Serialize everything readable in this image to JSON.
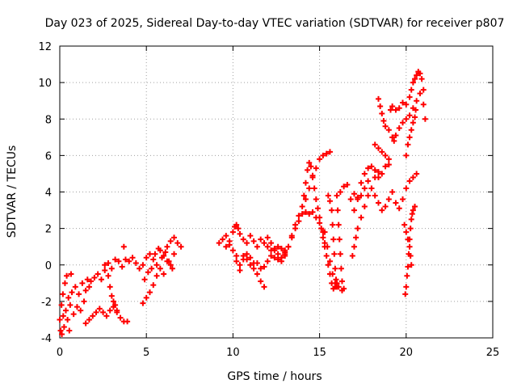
{
  "chart_data": {
    "type": "scatter",
    "title": "Day 023 of 2025, Sidereal Day-to-day VTEC variation (SDTVAR) for receiver p807",
    "xlabel": "GPS time / hours",
    "ylabel": "SDTVAR / TECUs",
    "xlim": [
      0,
      25
    ],
    "ylim": [
      -4,
      12
    ],
    "xticks": [
      "0",
      "5",
      "10",
      "15",
      "20",
      "25"
    ],
    "yticks": [
      "-4",
      "-2",
      "0",
      "2",
      "4",
      "6",
      "8",
      "10",
      "12"
    ],
    "grid": true,
    "marker": "plus",
    "color": "#ff0000",
    "series": [
      {
        "points": [
          [
            0.0,
            -3.0
          ],
          [
            0.05,
            -3.6
          ],
          [
            0.1,
            -2.2
          ],
          [
            0.12,
            -3.8
          ],
          [
            0.18,
            -1.6
          ],
          [
            0.2,
            -2.8
          ],
          [
            0.25,
            -3.4
          ],
          [
            0.3,
            -1.0
          ],
          [
            0.35,
            -2.5
          ],
          [
            0.4,
            -0.6
          ],
          [
            0.45,
            -3.0
          ],
          [
            0.5,
            -1.8
          ],
          [
            0.55,
            -3.6
          ],
          [
            0.6,
            -2.2
          ],
          [
            0.65,
            -0.5
          ],
          [
            0.7,
            -1.5
          ],
          [
            0.8,
            -2.7
          ],
          [
            0.9,
            -1.2
          ],
          [
            1.0,
            -2.3
          ],
          [
            1.1,
            -1.6
          ],
          [
            1.2,
            -2.5
          ],
          [
            1.3,
            -1.0
          ],
          [
            1.4,
            -2.0
          ],
          [
            1.5,
            -1.4
          ],
          [
            1.6,
            -0.8
          ],
          [
            1.7,
            -1.2
          ],
          [
            1.5,
            -3.2
          ],
          [
            1.7,
            -3.0
          ],
          [
            1.9,
            -2.8
          ],
          [
            2.1,
            -2.6
          ],
          [
            2.3,
            -2.4
          ],
          [
            2.5,
            -2.6
          ],
          [
            2.7,
            -2.8
          ],
          [
            2.9,
            -2.5
          ],
          [
            3.1,
            -2.3
          ],
          [
            3.3,
            -2.6
          ],
          [
            3.5,
            -2.9
          ],
          [
            3.7,
            -3.1
          ],
          [
            3.9,
            -3.1
          ],
          [
            1.8,
            -0.9
          ],
          [
            2.0,
            -0.7
          ],
          [
            2.2,
            -0.5
          ],
          [
            2.4,
            -0.8
          ],
          [
            2.6,
            -0.3
          ],
          [
            2.8,
            0.1
          ],
          [
            3.0,
            -0.2
          ],
          [
            3.2,
            0.3
          ],
          [
            3.4,
            0.2
          ],
          [
            3.6,
            -0.1
          ],
          [
            3.8,
            0.3
          ],
          [
            3.7,
            1.0
          ],
          [
            2.6,
            0.0
          ],
          [
            2.8,
            -0.6
          ],
          [
            2.9,
            -1.2
          ],
          [
            3.0,
            -1.7
          ],
          [
            3.1,
            -2.0
          ],
          [
            3.2,
            -2.2
          ],
          [
            3.3,
            -2.5
          ],
          [
            4.0,
            0.2
          ],
          [
            4.2,
            0.4
          ],
          [
            4.4,
            0.1
          ],
          [
            4.6,
            -0.2
          ],
          [
            4.8,
            0.0
          ],
          [
            5.0,
            0.4
          ],
          [
            5.2,
            0.6
          ],
          [
            5.4,
            0.3
          ],
          [
            5.6,
            0.0
          ],
          [
            5.8,
            0.8
          ],
          [
            6.0,
            0.5
          ],
          [
            6.2,
            1.0
          ],
          [
            6.4,
            1.3
          ],
          [
            6.6,
            1.5
          ],
          [
            6.8,
            1.2
          ],
          [
            7.0,
            1.0
          ],
          [
            4.8,
            -2.1
          ],
          [
            5.0,
            -1.8
          ],
          [
            5.2,
            -1.5
          ],
          [
            5.4,
            -1.1
          ],
          [
            5.6,
            -0.6
          ],
          [
            5.8,
            -0.2
          ],
          [
            6.0,
            -0.5
          ],
          [
            6.2,
            0.2
          ],
          [
            6.4,
            0.0
          ],
          [
            6.6,
            0.6
          ],
          [
            4.9,
            -0.8
          ],
          [
            5.1,
            -0.4
          ],
          [
            5.3,
            -0.2
          ],
          [
            5.5,
            0.6
          ],
          [
            5.7,
            0.9
          ],
          [
            5.9,
            0.4
          ],
          [
            6.1,
            0.7
          ],
          [
            6.3,
            0.2
          ],
          [
            6.5,
            -0.2
          ],
          [
            9.2,
            1.2
          ],
          [
            9.4,
            1.4
          ],
          [
            9.6,
            1.0
          ],
          [
            9.8,
            1.3
          ],
          [
            10.0,
            1.8
          ],
          [
            10.1,
            2.1
          ],
          [
            10.2,
            2.2
          ],
          [
            10.3,
            2.0
          ],
          [
            10.4,
            1.7
          ],
          [
            10.6,
            1.4
          ],
          [
            10.8,
            1.2
          ],
          [
            11.0,
            1.6
          ],
          [
            11.2,
            1.3
          ],
          [
            11.4,
            1.0
          ],
          [
            11.6,
            1.4
          ],
          [
            11.8,
            1.2
          ],
          [
            12.0,
            1.0
          ],
          [
            12.2,
            0.8
          ],
          [
            12.4,
            0.9
          ],
          [
            12.6,
            1.0
          ],
          [
            12.8,
            0.9
          ],
          [
            13.0,
            0.8
          ],
          [
            9.6,
            1.6
          ],
          [
            9.8,
            1.1
          ],
          [
            10.0,
            0.8
          ],
          [
            10.2,
            0.5
          ],
          [
            10.4,
            0.0
          ],
          [
            10.6,
            0.3
          ],
          [
            10.8,
            0.6
          ],
          [
            11.0,
            0.4
          ],
          [
            11.2,
            0.1
          ],
          [
            11.4,
            -0.5
          ],
          [
            11.6,
            -0.9
          ],
          [
            11.8,
            -1.2
          ],
          [
            10.2,
            0.2
          ],
          [
            10.4,
            -0.3
          ],
          [
            10.6,
            0.5
          ],
          [
            10.8,
            0.3
          ],
          [
            11.0,
            0.0
          ],
          [
            11.2,
            -0.2
          ],
          [
            11.4,
            0.1
          ],
          [
            11.6,
            -0.2
          ],
          [
            11.8,
            -0.1
          ],
          [
            12.0,
            0.2
          ],
          [
            12.2,
            0.5
          ],
          [
            12.4,
            0.4
          ],
          [
            12.6,
            0.6
          ],
          [
            12.8,
            0.4
          ],
          [
            13.0,
            0.7
          ],
          [
            12.0,
            1.5
          ],
          [
            12.2,
            1.2
          ],
          [
            12.4,
            0.8
          ],
          [
            12.6,
            0.3
          ],
          [
            12.8,
            0.2
          ],
          [
            13.0,
            0.6
          ],
          [
            13.2,
            1.0
          ],
          [
            13.4,
            1.6
          ],
          [
            13.6,
            2.2
          ],
          [
            13.8,
            2.7
          ],
          [
            14.0,
            3.2
          ],
          [
            14.2,
            3.6
          ],
          [
            14.4,
            4.2
          ],
          [
            14.6,
            4.8
          ],
          [
            14.8,
            5.3
          ],
          [
            15.0,
            5.8
          ],
          [
            15.2,
            6.0
          ],
          [
            15.4,
            6.1
          ],
          [
            15.6,
            6.2
          ],
          [
            13.0,
            0.5
          ],
          [
            13.2,
            1.0
          ],
          [
            13.4,
            1.5
          ],
          [
            13.6,
            2.0
          ],
          [
            13.8,
            2.4
          ],
          [
            14.0,
            2.8
          ],
          [
            14.2,
            2.9
          ],
          [
            14.4,
            2.8
          ],
          [
            14.6,
            2.9
          ],
          [
            14.8,
            2.6
          ],
          [
            15.0,
            2.3
          ],
          [
            15.2,
            1.8
          ],
          [
            15.3,
            1.2
          ],
          [
            14.1,
            3.8
          ],
          [
            14.2,
            4.5
          ],
          [
            14.3,
            5.2
          ],
          [
            14.4,
            5.6
          ],
          [
            14.5,
            5.4
          ],
          [
            14.6,
            4.9
          ],
          [
            14.7,
            4.2
          ],
          [
            14.8,
            3.6
          ],
          [
            14.9,
            3.1
          ],
          [
            15.0,
            2.6
          ],
          [
            15.1,
            2.0
          ],
          [
            15.2,
            1.5
          ],
          [
            15.3,
            1.0
          ],
          [
            15.4,
            0.5
          ],
          [
            15.5,
            0.0
          ],
          [
            15.6,
            -0.5
          ],
          [
            15.7,
            -1.0
          ],
          [
            15.8,
            -1.3
          ],
          [
            15.9,
            -1.2
          ],
          [
            16.0,
            -1.0
          ],
          [
            15.5,
            3.8
          ],
          [
            15.6,
            3.5
          ],
          [
            15.7,
            3.0
          ],
          [
            15.75,
            2.2
          ],
          [
            15.8,
            1.4
          ],
          [
            15.85,
            0.6
          ],
          [
            15.9,
            -0.2
          ],
          [
            15.95,
            -0.8
          ],
          [
            16.0,
            -1.2
          ],
          [
            16.0,
            3.8
          ],
          [
            16.05,
            3.0
          ],
          [
            16.1,
            2.2
          ],
          [
            16.15,
            1.4
          ],
          [
            16.2,
            0.6
          ],
          [
            16.25,
            -0.2
          ],
          [
            16.3,
            -0.9
          ],
          [
            16.4,
            -1.3
          ],
          [
            15.3,
            1.8
          ],
          [
            15.45,
            1.0
          ],
          [
            15.6,
            0.2
          ],
          [
            15.75,
            -0.5
          ],
          [
            15.9,
            -1.0
          ],
          [
            16.1,
            -1.2
          ],
          [
            16.3,
            -1.4
          ],
          [
            16.2,
            4.0
          ],
          [
            16.4,
            4.3
          ],
          [
            16.6,
            4.4
          ],
          [
            16.8,
            3.6
          ],
          [
            17.0,
            3.0
          ],
          [
            17.2,
            3.6
          ],
          [
            17.4,
            4.5
          ],
          [
            17.6,
            5.0
          ],
          [
            17.8,
            5.3
          ],
          [
            18.0,
            5.4
          ],
          [
            18.2,
            5.2
          ],
          [
            18.4,
            4.8
          ],
          [
            18.6,
            5.0
          ],
          [
            18.8,
            5.4
          ],
          [
            19.0,
            5.5
          ],
          [
            16.9,
            0.5
          ],
          [
            17.0,
            1.0
          ],
          [
            17.1,
            1.5
          ],
          [
            17.2,
            2.0
          ],
          [
            17.4,
            2.6
          ],
          [
            17.6,
            3.2
          ],
          [
            17.8,
            3.8
          ],
          [
            18.0,
            4.2
          ],
          [
            18.2,
            4.8
          ],
          [
            18.4,
            5.1
          ],
          [
            17.0,
            3.9
          ],
          [
            17.2,
            3.7
          ],
          [
            17.4,
            3.8
          ],
          [
            17.6,
            4.2
          ],
          [
            17.8,
            4.6
          ],
          [
            18.0,
            4.2
          ],
          [
            18.2,
            3.8
          ],
          [
            18.4,
            3.4
          ],
          [
            18.6,
            3.0
          ],
          [
            18.8,
            3.2
          ],
          [
            19.0,
            3.6
          ],
          [
            19.2,
            4.0
          ],
          [
            19.4,
            3.4
          ],
          [
            19.6,
            3.1
          ],
          [
            19.8,
            3.6
          ],
          [
            20.0,
            4.2
          ],
          [
            20.2,
            4.6
          ],
          [
            20.4,
            4.8
          ],
          [
            20.6,
            5.0
          ],
          [
            18.2,
            6.6
          ],
          [
            18.4,
            6.4
          ],
          [
            18.6,
            6.2
          ],
          [
            18.8,
            6.0
          ],
          [
            19.0,
            5.8
          ],
          [
            18.4,
            9.1
          ],
          [
            18.5,
            8.7
          ],
          [
            18.6,
            8.3
          ],
          [
            18.7,
            7.9
          ],
          [
            18.8,
            7.6
          ],
          [
            19.0,
            7.4
          ],
          [
            19.2,
            7.0
          ],
          [
            19.3,
            6.8
          ],
          [
            19.4,
            7.1
          ],
          [
            19.6,
            7.5
          ],
          [
            19.8,
            7.8
          ],
          [
            20.0,
            8.0
          ],
          [
            20.2,
            8.2
          ],
          [
            20.4,
            8.6
          ],
          [
            20.6,
            9.0
          ],
          [
            20.8,
            9.4
          ],
          [
            21.0,
            8.8
          ],
          [
            21.1,
            8.0
          ],
          [
            19.1,
            8.5
          ],
          [
            19.2,
            8.7
          ],
          [
            19.4,
            8.5
          ],
          [
            19.6,
            8.6
          ],
          [
            19.8,
            8.9
          ],
          [
            20.0,
            8.8
          ],
          [
            20.2,
            9.2
          ],
          [
            20.3,
            9.6
          ],
          [
            20.4,
            10.0
          ],
          [
            20.5,
            10.2
          ],
          [
            20.6,
            10.4
          ],
          [
            20.7,
            10.6
          ],
          [
            20.8,
            10.5
          ],
          [
            20.9,
            10.2
          ],
          [
            21.0,
            9.6
          ],
          [
            20.0,
            6.0
          ],
          [
            20.1,
            6.6
          ],
          [
            20.2,
            7.0
          ],
          [
            20.3,
            7.4
          ],
          [
            20.4,
            7.8
          ],
          [
            20.5,
            8.1
          ],
          [
            20.55,
            8.5
          ],
          [
            19.9,
            2.2
          ],
          [
            20.0,
            1.8
          ],
          [
            20.1,
            1.4
          ],
          [
            20.2,
            1.0
          ],
          [
            20.25,
            0.5
          ],
          [
            20.3,
            0.0
          ],
          [
            19.95,
            -1.6
          ],
          [
            20.0,
            -1.2
          ],
          [
            20.05,
            -0.6
          ],
          [
            20.1,
            -0.1
          ],
          [
            20.15,
            0.6
          ],
          [
            20.2,
            1.4
          ],
          [
            20.25,
            2.0
          ],
          [
            20.3,
            2.5
          ],
          [
            20.35,
            2.8
          ],
          [
            20.4,
            3.0
          ],
          [
            20.5,
            3.2
          ]
        ]
      }
    ]
  }
}
